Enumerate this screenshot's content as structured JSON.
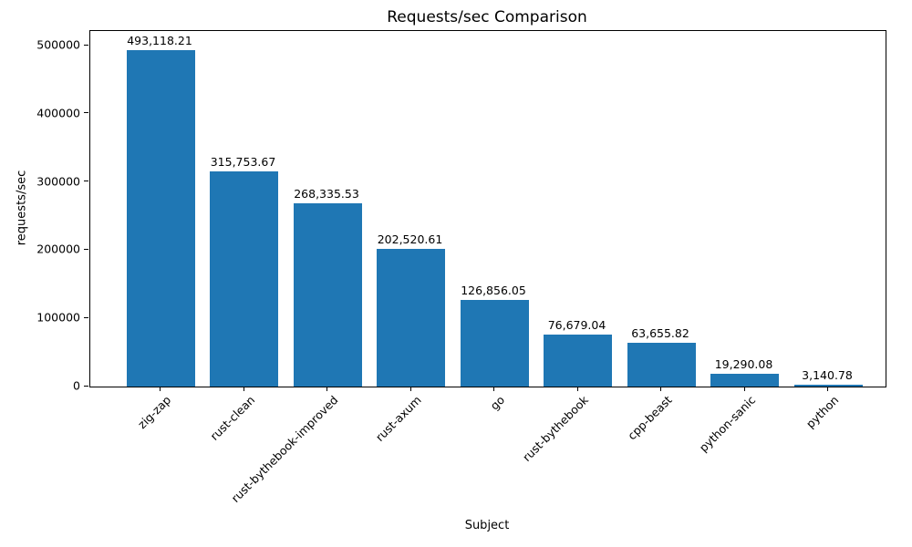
{
  "chart_data": {
    "type": "bar",
    "title": "Requests/sec Comparison",
    "xlabel": "Subject",
    "ylabel": "requests/sec",
    "categories": [
      "zig-zap",
      "rust-clean",
      "rust-bythebook-improved",
      "rust-axum",
      "go",
      "rust-bythebook",
      "cpp-beast",
      "python-sanic",
      "python"
    ],
    "values": [
      493118.21,
      315753.67,
      268335.53,
      202520.61,
      126856.05,
      76679.04,
      63655.82,
      19290.08,
      3140.78
    ],
    "value_labels": [
      "493,118.21",
      "315,753.67",
      "268,335.53",
      "202,520.61",
      "126,856.05",
      "76,679.04",
      "63,655.82",
      "19,290.08",
      "3,140.78"
    ],
    "yticks": [
      0,
      100000,
      200000,
      300000,
      400000,
      500000
    ],
    "ytick_labels": [
      "0",
      "100000",
      "200000",
      "300000",
      "400000",
      "500000"
    ],
    "ylim": [
      0,
      521400
    ],
    "bar_color": "#1f77b4",
    "text_color": "#000000",
    "background_color": "#ffffff",
    "grid": false,
    "legend": null,
    "x_tick_label_rotation_deg": 45
  }
}
